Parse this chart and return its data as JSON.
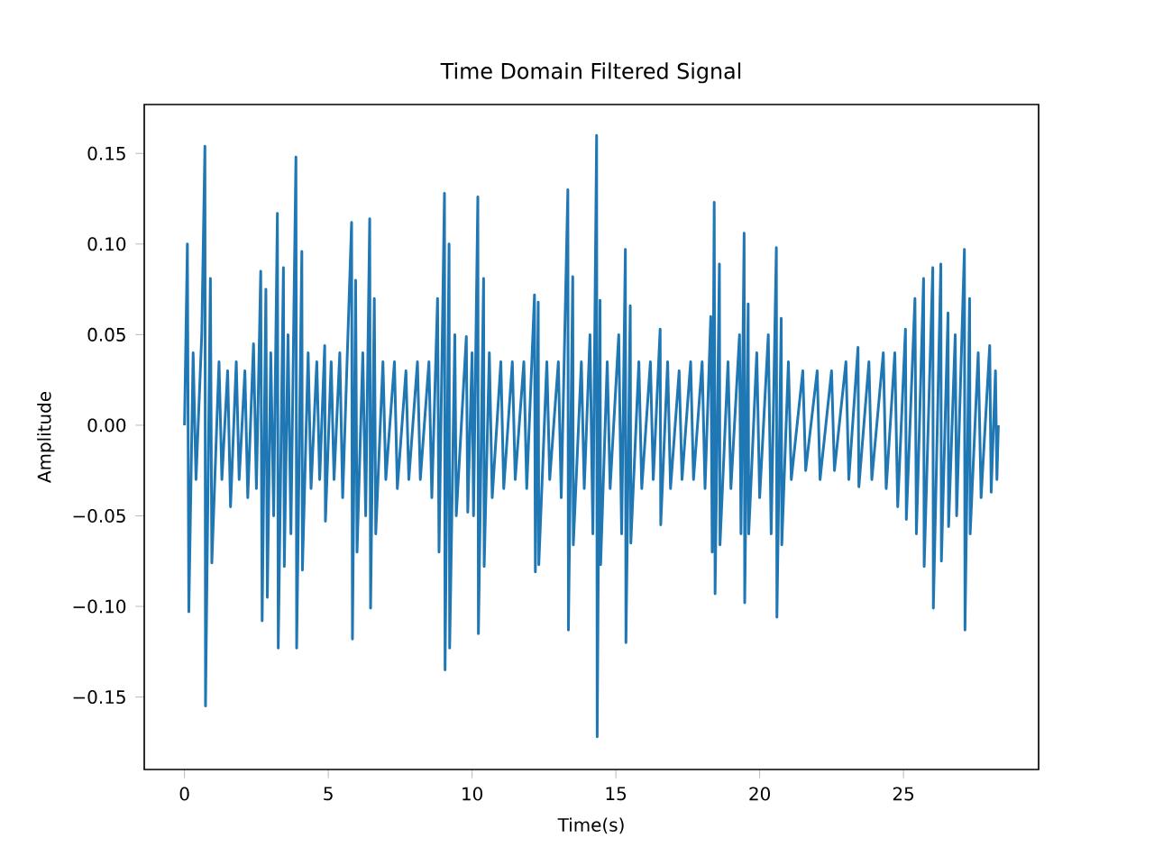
{
  "chart_data": {
    "type": "line",
    "title": "Time Domain Filtered Signal",
    "xlabel": "Time(s)",
    "ylabel": "Amplitude",
    "color": "#1f77b4",
    "xlim": [
      -1.4,
      29.7
    ],
    "ylim": [
      -0.19,
      0.177
    ],
    "xticks": [
      0,
      5,
      10,
      15,
      20,
      25
    ],
    "yticks": [
      {
        "value": -0.15,
        "label": "−0.15"
      },
      {
        "value": -0.1,
        "label": "−0.10"
      },
      {
        "value": -0.05,
        "label": "−0.05"
      },
      {
        "value": 0,
        "label": "0.00"
      },
      {
        "value": 0.05,
        "label": "0.05"
      },
      {
        "value": 0.1,
        "label": "0.10"
      },
      {
        "value": 0.15,
        "label": "0.15"
      }
    ],
    "x": [
      0,
      0.1,
      0.15,
      0.3,
      0.4,
      0.6,
      0.71,
      0.73,
      0.9,
      0.95,
      1.2,
      1.3,
      1.5,
      1.6,
      1.8,
      1.9,
      2.1,
      2.2,
      2.4,
      2.5,
      2.65,
      2.7,
      2.83,
      2.88,
      3.0,
      3.1,
      3.23,
      3.26,
      3.44,
      3.47,
      3.6,
      3.7,
      3.875,
      3.9,
      4.08,
      4.1,
      4.3,
      4.4,
      4.6,
      4.7,
      4.875,
      4.9,
      5.1,
      5.2,
      5.4,
      5.5,
      5.81,
      5.84,
      5.95,
      6.0,
      6.2,
      6.3,
      6.44,
      6.47,
      6.6,
      6.65,
      6.9,
      7.0,
      7.3,
      7.4,
      7.7,
      7.8,
      8.1,
      8.2,
      8.5,
      8.6,
      8.8,
      8.85,
      9.04,
      9.06,
      9.2,
      9.22,
      9.4,
      9.45,
      9.8,
      9.85,
      10.0,
      10.05,
      10.2,
      10.22,
      10.4,
      10.42,
      10.6,
      10.7,
      11.0,
      11.1,
      11.4,
      11.5,
      11.8,
      11.9,
      12.17,
      12.2,
      12.3,
      12.32,
      12.6,
      12.7,
      13.0,
      13.1,
      13.33,
      13.35,
      13.5,
      13.52,
      13.8,
      13.9,
      14.1,
      14.2,
      14.33,
      14.35,
      14.45,
      14.47,
      14.7,
      14.8,
      15.1,
      15.2,
      15.33,
      15.35,
      15.5,
      15.52,
      15.8,
      15.9,
      16.2,
      16.3,
      16.54,
      16.56,
      16.8,
      16.9,
      17.2,
      17.3,
      17.6,
      17.7,
      18.0,
      18.1,
      18.3,
      18.35,
      18.42,
      18.45,
      18.6,
      18.62,
      18.9,
      19.0,
      19.3,
      19.35,
      19.46,
      19.48,
      19.6,
      19.62,
      19.9,
      20.0,
      20.3,
      20.4,
      20.58,
      20.6,
      20.75,
      20.77,
      21.0,
      21.1,
      21.5,
      21.6,
      22.0,
      22.1,
      22.5,
      22.6,
      23.0,
      23.1,
      23.42,
      23.45,
      23.8,
      23.9,
      24.3,
      24.4,
      24.7,
      24.8,
      25.07,
      25.1,
      25.4,
      25.45,
      25.7,
      25.72,
      26.02,
      26.04,
      26.3,
      26.32,
      26.55,
      26.57,
      26.8,
      26.85,
      27.12,
      27.14,
      27.3,
      27.32,
      27.6,
      27.7,
      28.0,
      28.05,
      28.2,
      28.25,
      28.3
    ],
    "values": [
      0,
      0.1,
      -0.103,
      0.04,
      -0.03,
      0.05,
      0.154,
      -0.155,
      0.081,
      -0.076,
      0.035,
      -0.03,
      0.03,
      -0.045,
      0.035,
      -0.03,
      0.03,
      -0.04,
      0.045,
      -0.035,
      0.085,
      -0.108,
      0.075,
      -0.095,
      0.04,
      -0.05,
      0.117,
      -0.123,
      0.087,
      -0.078,
      0.05,
      -0.06,
      0.148,
      -0.123,
      0.096,
      -0.08,
      0.04,
      -0.035,
      0.035,
      -0.03,
      0.044,
      -0.053,
      0.035,
      -0.03,
      0.04,
      -0.04,
      0.112,
      -0.118,
      0.08,
      -0.07,
      0.04,
      -0.05,
      0.114,
      -0.101,
      0.07,
      -0.06,
      0.035,
      -0.03,
      0.035,
      -0.035,
      0.03,
      -0.03,
      0.035,
      -0.03,
      0.035,
      -0.04,
      0.07,
      -0.07,
      0.128,
      -0.135,
      0.1,
      -0.123,
      0.05,
      -0.05,
      0.049,
      -0.048,
      0.04,
      -0.05,
      0.126,
      -0.115,
      0.081,
      -0.078,
      0.04,
      -0.04,
      0.035,
      -0.035,
      0.035,
      -0.03,
      0.035,
      -0.035,
      0.072,
      -0.081,
      0.068,
      -0.077,
      0.035,
      -0.03,
      0.035,
      -0.04,
      0.13,
      -0.113,
      0.082,
      -0.066,
      0.035,
      -0.035,
      0.05,
      -0.06,
      0.16,
      -0.172,
      0.069,
      -0.077,
      0.035,
      -0.035,
      0.05,
      -0.06,
      0.097,
      -0.12,
      0.066,
      -0.065,
      0.035,
      -0.035,
      0.035,
      -0.03,
      0.053,
      -0.055,
      0.035,
      -0.035,
      0.03,
      -0.03,
      0.035,
      -0.03,
      0.035,
      -0.035,
      0.06,
      -0.07,
      0.123,
      -0.093,
      0.089,
      -0.066,
      0.035,
      -0.035,
      0.05,
      -0.06,
      0.106,
      -0.098,
      0.067,
      -0.06,
      0.04,
      -0.04,
      0.05,
      -0.06,
      0.098,
      -0.106,
      0.059,
      -0.066,
      0.035,
      -0.03,
      0.03,
      -0.025,
      0.03,
      -0.03,
      0.03,
      -0.025,
      0.035,
      -0.03,
      0.043,
      -0.034,
      0.035,
      -0.03,
      0.04,
      -0.035,
      0.04,
      -0.045,
      0.053,
      -0.052,
      0.07,
      -0.06,
      0.081,
      -0.078,
      0.087,
      -0.101,
      0.089,
      -0.075,
      0.062,
      -0.056,
      0.05,
      -0.05,
      0.097,
      -0.113,
      0.07,
      -0.06,
      0.04,
      -0.04,
      0.044,
      -0.037,
      0.03,
      -0.03,
      0
    ]
  }
}
